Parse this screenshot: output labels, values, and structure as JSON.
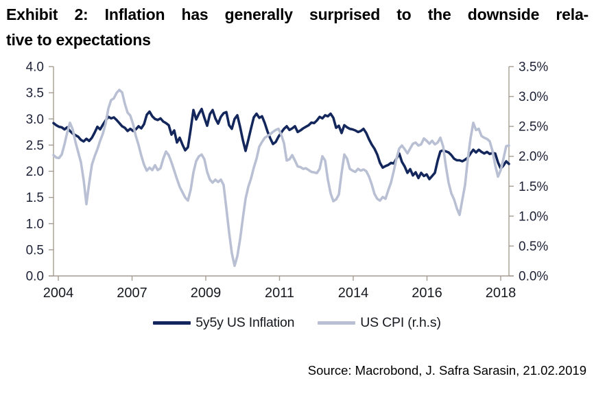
{
  "title": {
    "line1": "Exhibit 2: Inflation has generally surprised to the downside rela-",
    "line2": "tive to expectations"
  },
  "source": "Source: Macrobond, J. Safra Sarasin, 21.02.2019",
  "colors": {
    "navy_series": "#14275c",
    "gray_series": "#b9c0d3",
    "axis_line": "#a59c90",
    "tick_label": "#1c2136"
  },
  "chart_data": {
    "type": "line",
    "title": "Exhibit 2: Inflation has generally surprised to the downside relative to expectations",
    "grid": false,
    "legend_position": "bottom",
    "x_axis": {
      "ticks": [
        "2004",
        "2007",
        "2009",
        "2011",
        "2014",
        "2016",
        "2018"
      ]
    },
    "left_axis": {
      "min": 0,
      "max": 4,
      "ticks": [
        "4.0",
        "3.5",
        "3.0",
        "2.5",
        "2.0",
        "1.5",
        "1.0",
        "0.5",
        "0.0"
      ]
    },
    "right_axis": {
      "min": 0,
      "max": 3.5,
      "ticks": [
        "3.5%",
        "3.0%",
        "2.5%",
        "2.0%",
        "1.5%",
        "1.0%",
        "0.5%",
        "0.0%"
      ]
    },
    "series": [
      {
        "name": "5y5y US Inflation",
        "axis": "left",
        "color": "#14275c",
        "values": [
          2.92,
          2.88,
          2.85,
          2.84,
          2.8,
          2.84,
          2.77,
          2.72,
          2.69,
          2.66,
          2.6,
          2.57,
          2.62,
          2.58,
          2.64,
          2.74,
          2.85,
          2.8,
          2.89,
          2.97,
          3.04,
          3.01,
          3.03,
          2.98,
          2.92,
          2.86,
          2.83,
          2.77,
          2.81,
          2.77,
          2.8,
          2.86,
          2.82,
          2.9,
          3.08,
          3.14,
          3.05,
          3.0,
          2.98,
          3.01,
          2.95,
          2.92,
          2.88,
          2.7,
          2.78,
          2.55,
          2.64,
          2.51,
          2.4,
          2.46,
          2.8,
          3.17,
          2.99,
          3.1,
          3.19,
          3.02,
          2.87,
          3.09,
          3.17,
          3.01,
          2.91,
          3.04,
          3.11,
          3.13,
          2.88,
          2.81,
          3.0,
          3.07,
          2.85,
          2.6,
          2.39,
          2.6,
          2.82,
          3.03,
          3.1,
          3.02,
          3.05,
          2.92,
          2.76,
          2.63,
          2.52,
          2.56,
          2.66,
          2.74,
          2.81,
          2.86,
          2.79,
          2.82,
          2.86,
          2.75,
          2.78,
          2.82,
          2.85,
          2.88,
          2.93,
          2.92,
          2.97,
          3.04,
          3.01,
          3.07,
          3.05,
          3.1,
          3.02,
          2.83,
          2.87,
          2.73,
          2.88,
          2.84,
          2.81,
          2.8,
          2.78,
          2.75,
          2.77,
          2.81,
          2.73,
          2.61,
          2.51,
          2.43,
          2.32,
          2.16,
          2.07,
          2.1,
          2.12,
          2.16,
          2.15,
          2.24,
          2.34,
          2.18,
          2.09,
          1.97,
          2.04,
          1.92,
          1.98,
          1.87,
          1.97,
          1.91,
          1.94,
          1.85,
          1.91,
          1.97,
          2.2,
          2.38,
          2.4,
          2.38,
          2.36,
          2.31,
          2.24,
          2.21,
          2.21,
          2.19,
          2.22,
          2.26,
          2.34,
          2.41,
          2.36,
          2.41,
          2.37,
          2.34,
          2.37,
          2.33,
          2.35,
          2.34,
          2.17,
          2.05,
          2.11,
          2.19,
          2.14
        ]
      },
      {
        "name": "US CPI (r.h.s)",
        "axis": "right",
        "color": "#b9c0d3",
        "values": [
          2.02,
          1.98,
          1.97,
          2.03,
          2.2,
          2.4,
          2.56,
          2.45,
          2.24,
          2.07,
          1.9,
          1.6,
          1.2,
          1.55,
          1.86,
          2.0,
          2.12,
          2.26,
          2.38,
          2.55,
          2.8,
          2.94,
          2.97,
          3.06,
          3.11,
          3.07,
          2.88,
          2.73,
          2.68,
          2.54,
          2.34,
          2.19,
          2.01,
          1.86,
          1.76,
          1.81,
          1.77,
          1.85,
          1.77,
          1.8,
          1.96,
          2.08,
          2.02,
          1.9,
          1.76,
          1.62,
          1.49,
          1.4,
          1.31,
          1.26,
          1.44,
          1.73,
          1.92,
          2.0,
          2.03,
          1.95,
          1.74,
          1.61,
          1.56,
          1.61,
          1.57,
          1.61,
          1.52,
          1.13,
          0.73,
          0.38,
          0.17,
          0.33,
          0.61,
          0.96,
          1.29,
          1.49,
          1.63,
          1.81,
          1.96,
          2.16,
          2.24,
          2.31,
          2.34,
          2.37,
          2.41,
          2.44,
          2.46,
          2.36,
          2.22,
          1.93,
          1.95,
          2.02,
          1.93,
          1.83,
          1.82,
          1.79,
          1.8,
          1.77,
          1.74,
          1.73,
          1.72,
          1.79,
          2.0,
          1.93,
          1.61,
          1.38,
          1.25,
          1.28,
          1.36,
          1.72,
          2.03,
          1.96,
          1.79,
          1.76,
          1.74,
          1.79,
          1.76,
          1.78,
          1.75,
          1.66,
          1.53,
          1.37,
          1.29,
          1.26,
          1.32,
          1.29,
          1.43,
          1.56,
          1.75,
          1.96,
          2.13,
          2.18,
          2.12,
          2.05,
          2.13,
          2.21,
          2.23,
          2.18,
          2.2,
          2.3,
          2.26,
          2.21,
          2.26,
          2.2,
          2.23,
          2.31,
          2.17,
          1.84,
          1.56,
          1.38,
          1.28,
          1.13,
          1.02,
          1.27,
          1.52,
          1.95,
          2.3,
          2.56,
          2.44,
          2.46,
          2.34,
          2.31,
          2.29,
          2.25,
          2.09,
          1.85,
          1.66,
          1.77,
          1.96,
          2.17,
          2.18
        ]
      }
    ]
  }
}
